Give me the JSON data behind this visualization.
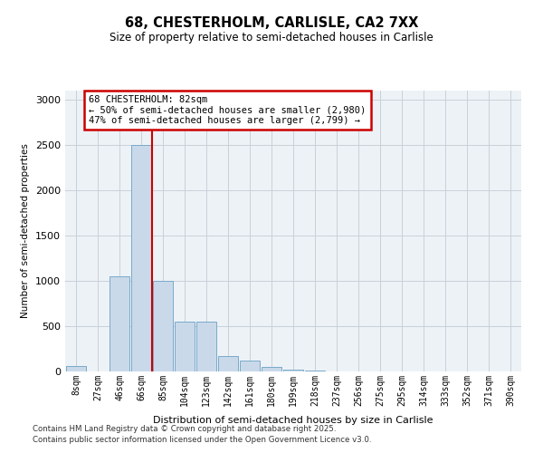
{
  "title1": "68, CHESTERHOLM, CARLISLE, CA2 7XX",
  "title2": "Size of property relative to semi-detached houses in Carlisle",
  "xlabel": "Distribution of semi-detached houses by size in Carlisle",
  "ylabel": "Number of semi-detached properties",
  "categories": [
    "8sqm",
    "27sqm",
    "46sqm",
    "66sqm",
    "85sqm",
    "104sqm",
    "123sqm",
    "142sqm",
    "161sqm",
    "180sqm",
    "199sqm",
    "218sqm",
    "237sqm",
    "256sqm",
    "275sqm",
    "295sqm",
    "314sqm",
    "333sqm",
    "352sqm",
    "371sqm",
    "390sqm"
  ],
  "values": [
    60,
    0,
    1050,
    2500,
    1000,
    550,
    550,
    175,
    120,
    55,
    20,
    10,
    4,
    2,
    1,
    0,
    0,
    0,
    0,
    0,
    0
  ],
  "bar_color": "#c9d9ea",
  "bar_edge_color": "#7aaac8",
  "red_line_index": 4,
  "annotation_text": "68 CHESTERHOLM: 82sqm\n← 50% of semi-detached houses are smaller (2,980)\n47% of semi-detached houses are larger (2,799) →",
  "annotation_box_color": "#ffffff",
  "annotation_box_edge": "#cc0000",
  "red_line_color": "#cc0000",
  "ylim": [
    0,
    3100
  ],
  "yticks": [
    0,
    500,
    1000,
    1500,
    2000,
    2500,
    3000
  ],
  "grid_color": "#c8d0d8",
  "bg_color": "#edf2f7",
  "footer1": "Contains HM Land Registry data © Crown copyright and database right 2025.",
  "footer2": "Contains public sector information licensed under the Open Government Licence v3.0."
}
